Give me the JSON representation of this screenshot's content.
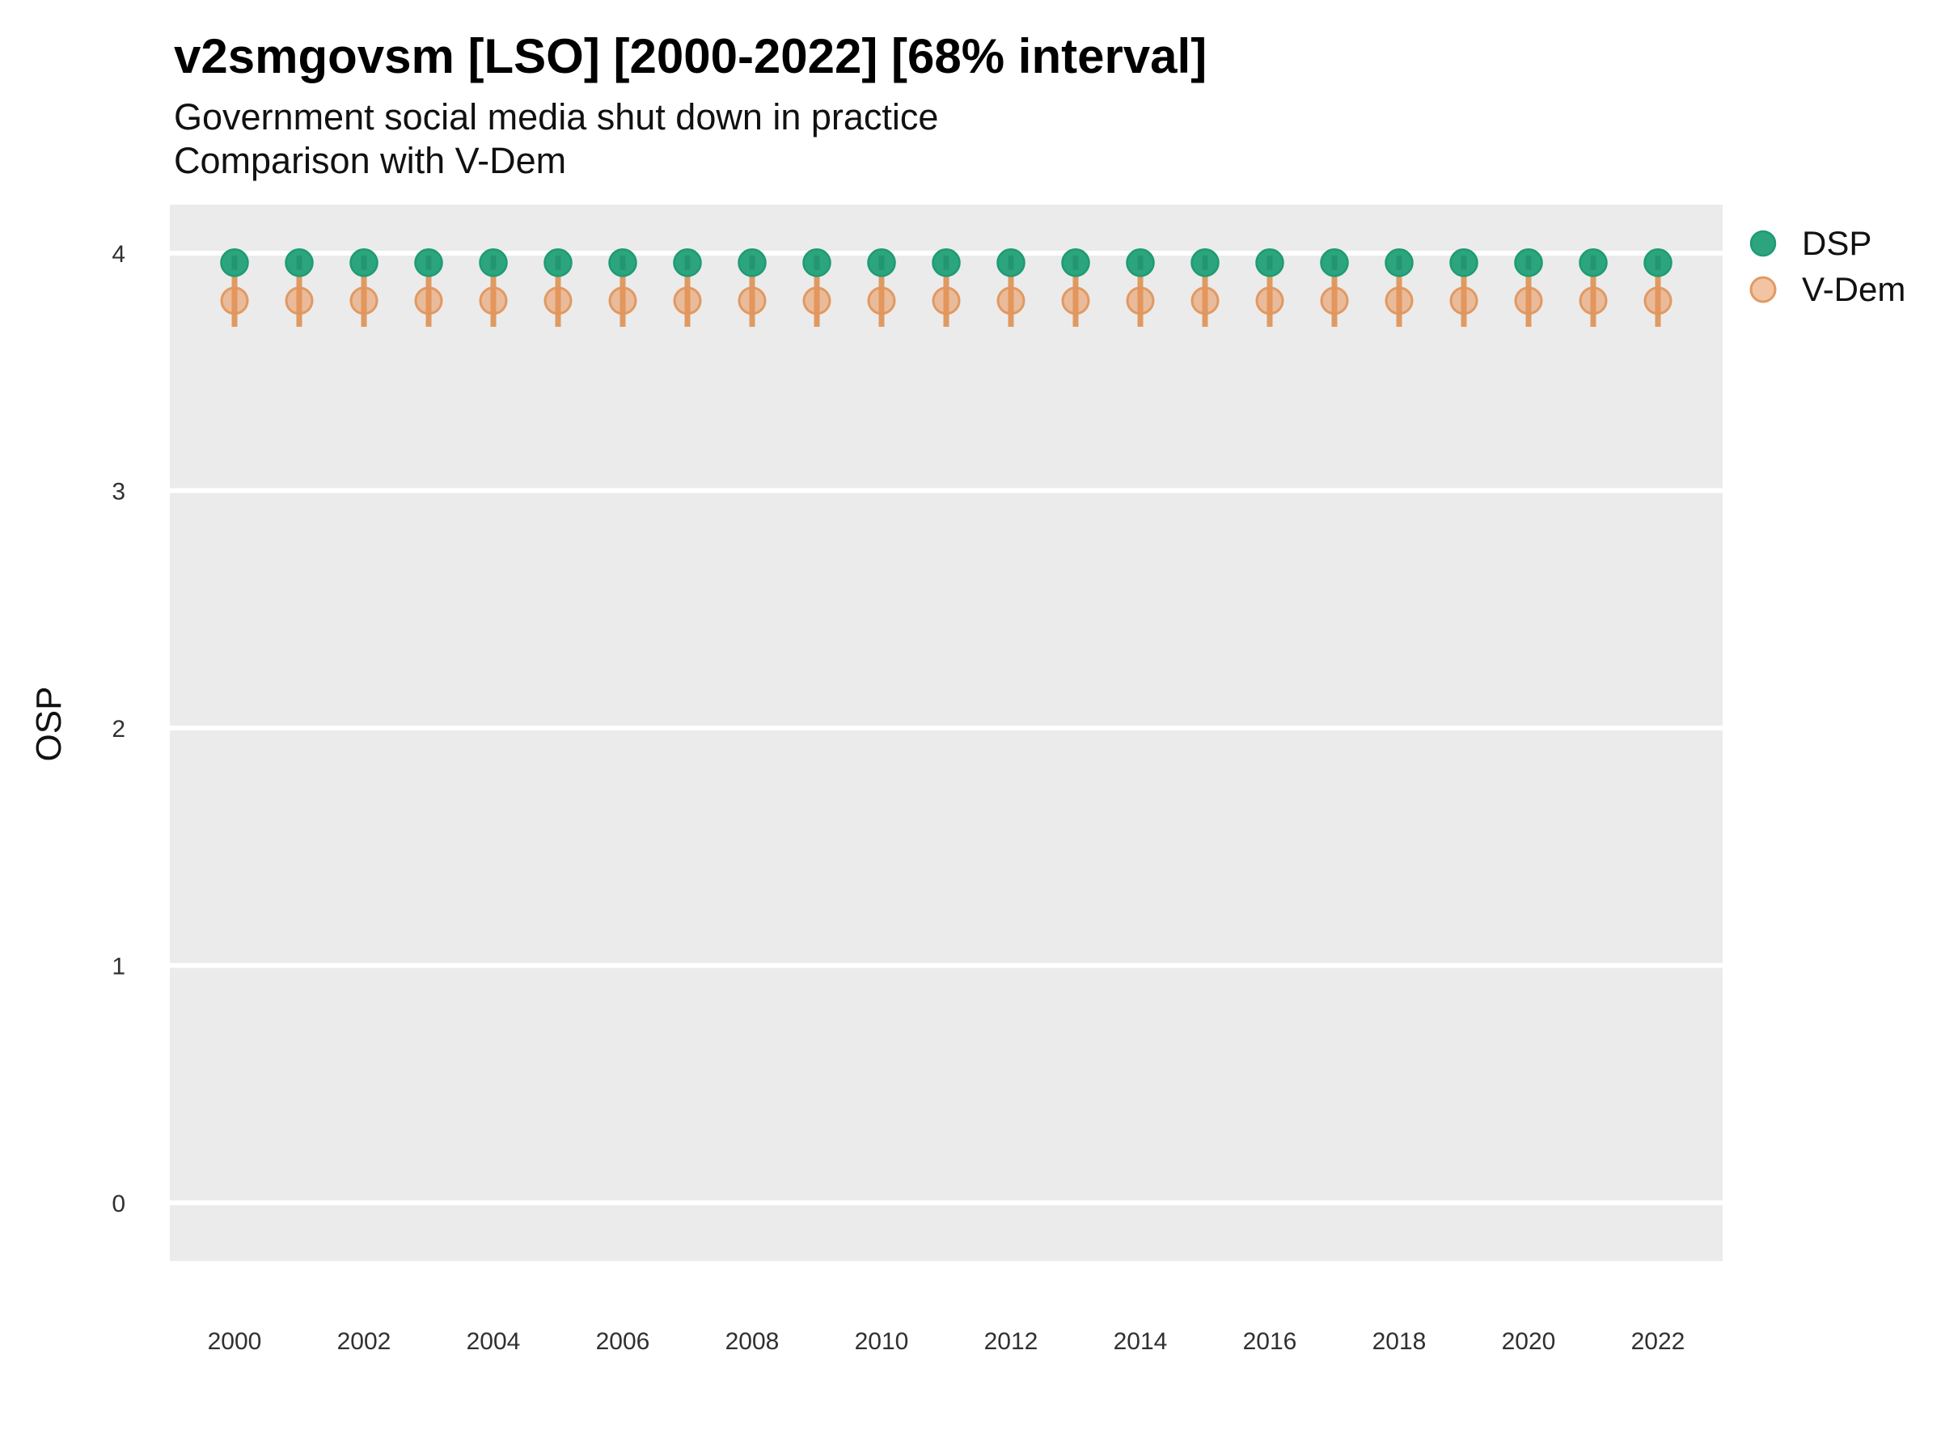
{
  "header": {
    "title": "v2smgovsm [LSO] [2000-2022] [68% interval]",
    "subtitle_line1": "Government social media shut down in practice",
    "subtitle_line2": "Comparison with V-Dem"
  },
  "y_axis": {
    "title": "OSP"
  },
  "legend": {
    "position": "right-top",
    "items": [
      {
        "label": "DSP",
        "marker": "filled-circle",
        "color": "#2CA57E",
        "stroke": "#1E9B73"
      },
      {
        "label": "V-Dem",
        "marker": "ring-circle",
        "color": "#EDAF80",
        "stroke": "#E29A61"
      }
    ]
  },
  "colors": {
    "panel_background": "#EBEBEB",
    "gridline": "#FFFFFF",
    "dsp_fill": "#2CA57E",
    "dsp_stroke": "#1E9B73",
    "dsp_ci_line": "rgba(23,125,91,0.40)",
    "vdem_fill": "rgba(231,148,87,0.55)",
    "vdem_stroke": "rgba(224,150,93,0.95)",
    "vdem_ci_line": "#DF9A62",
    "tick_text": "#303030",
    "title_text": "#000000"
  },
  "chart_data": {
    "type": "scatter",
    "title": "v2smgovsm [LSO] [2000-2022] [68% interval]",
    "subtitle": [
      "Government social media shut down in practice",
      "Comparison with V-Dem"
    ],
    "interval": "68%",
    "xlabel": "",
    "ylabel": "OSP",
    "ylim": [
      -0.25,
      4.2
    ],
    "yticks": [
      0,
      1,
      2,
      3,
      4
    ],
    "xticks": [
      2000,
      2002,
      2004,
      2006,
      2008,
      2010,
      2012,
      2014,
      2016,
      2018,
      2020,
      2022
    ],
    "grid": "major-horizontal-white-on-gray",
    "legend_position": "right",
    "x": [
      2000,
      2001,
      2002,
      2003,
      2004,
      2005,
      2006,
      2007,
      2008,
      2009,
      2010,
      2011,
      2012,
      2013,
      2014,
      2015,
      2016,
      2017,
      2018,
      2019,
      2020,
      2021,
      2022
    ],
    "series": [
      {
        "name": "DSP",
        "values": [
          3.96,
          3.96,
          3.96,
          3.96,
          3.96,
          3.96,
          3.96,
          3.96,
          3.96,
          3.96,
          3.96,
          3.96,
          3.96,
          3.96,
          3.96,
          3.96,
          3.96,
          3.96,
          3.96,
          3.96,
          3.96,
          3.96,
          3.96
        ],
        "ci_low": [
          3.93,
          3.93,
          3.93,
          3.93,
          3.93,
          3.93,
          3.93,
          3.93,
          3.93,
          3.93,
          3.93,
          3.93,
          3.93,
          3.93,
          3.93,
          3.93,
          3.93,
          3.93,
          3.93,
          3.93,
          3.93,
          3.93,
          3.93
        ],
        "ci_high": [
          3.99,
          3.99,
          3.99,
          3.99,
          3.99,
          3.99,
          3.99,
          3.99,
          3.99,
          3.99,
          3.99,
          3.99,
          3.99,
          3.99,
          3.99,
          3.99,
          3.99,
          3.99,
          3.99,
          3.99,
          3.99,
          3.99,
          3.99
        ]
      },
      {
        "name": "V-Dem",
        "values": [
          3.8,
          3.8,
          3.8,
          3.8,
          3.8,
          3.8,
          3.8,
          3.8,
          3.8,
          3.8,
          3.8,
          3.8,
          3.8,
          3.8,
          3.8,
          3.8,
          3.8,
          3.8,
          3.8,
          3.8,
          3.8,
          3.8,
          3.8
        ],
        "ci_low": [
          3.69,
          3.69,
          3.69,
          3.69,
          3.69,
          3.69,
          3.69,
          3.69,
          3.69,
          3.69,
          3.69,
          3.69,
          3.69,
          3.69,
          3.69,
          3.69,
          3.69,
          3.69,
          3.69,
          3.69,
          3.69,
          3.69,
          3.69
        ],
        "ci_high": [
          3.92,
          3.92,
          3.92,
          3.92,
          3.92,
          3.92,
          3.92,
          3.92,
          3.92,
          3.92,
          3.92,
          3.92,
          3.92,
          3.92,
          3.92,
          3.92,
          3.92,
          3.92,
          3.92,
          3.92,
          3.92,
          3.92,
          3.92
        ]
      }
    ]
  }
}
